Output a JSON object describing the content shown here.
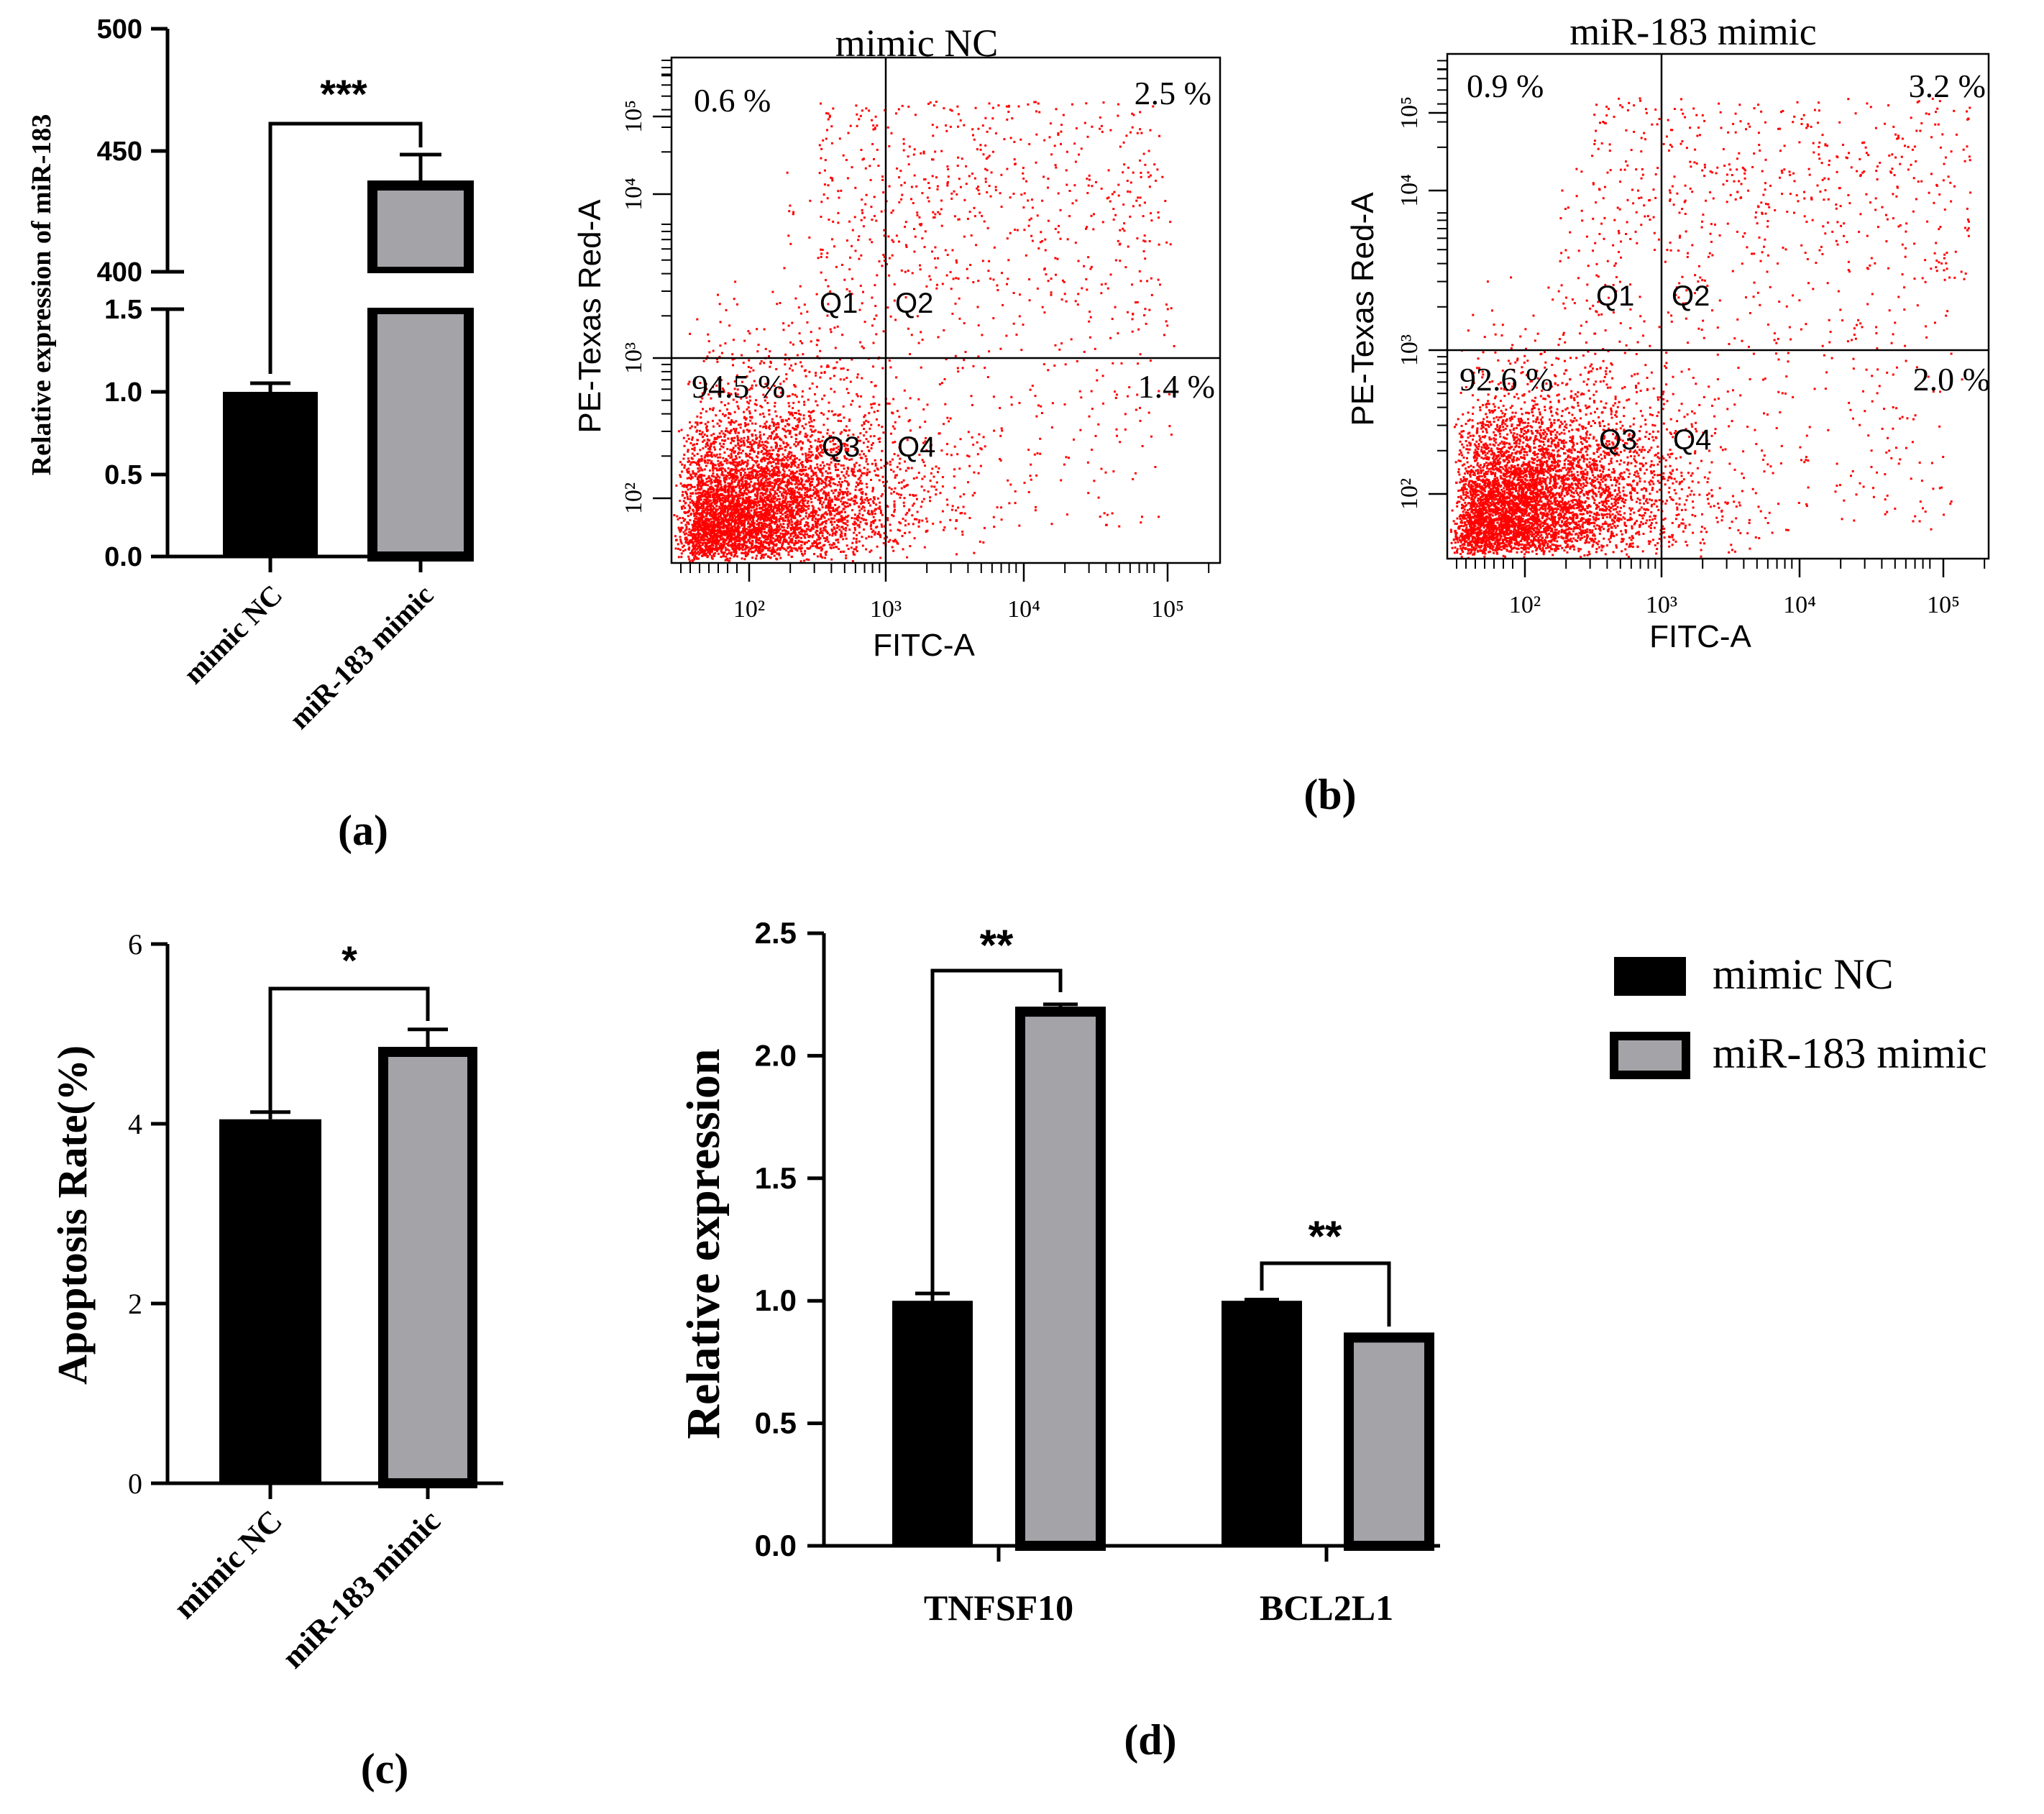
{
  "chart_data": [
    {
      "panel": "(a)",
      "type": "bar",
      "ylabel": "Relative expression of miR-183",
      "categories": [
        "mimic NC",
        "miR-183 mimic"
      ],
      "values": [
        1.0,
        437
      ],
      "errors": [
        0.05,
        12
      ],
      "axis_break": {
        "lower_range": [
          0,
          1.5
        ],
        "upper_range": [
          400,
          500
        ]
      },
      "lower_ticks": [
        "0.0",
        "0.5",
        "1.0",
        "1.5"
      ],
      "upper_ticks": [
        "400",
        "450",
        "500"
      ],
      "significance": "***",
      "bar_colors": [
        "#000000",
        "#a3a3a8"
      ]
    },
    {
      "panel": "(b)",
      "type": "scatter",
      "plots": [
        {
          "title": "mimic NC",
          "quadrants": {
            "Q1": "0.6 %",
            "Q2": "2.5 %",
            "Q3": "94.5 %",
            "Q4": "1.4 %"
          }
        },
        {
          "title": "miR-183 mimic",
          "quadrants": {
            "Q1": "0.9 %",
            "Q2": "3.2 %",
            "Q3": "92.6 %",
            "Q4": "2.0 %"
          }
        }
      ],
      "quadrant_names": [
        "Q1",
        "Q2",
        "Q3",
        "Q4"
      ],
      "xlabel": "FITC-A",
      "ylabel": "PE-Texas Red-A",
      "x_ticks": [
        "10²",
        "10³",
        "10⁴",
        "10⁵"
      ],
      "y_ticks": [
        "10²",
        "10³",
        "10⁴",
        "10⁵"
      ],
      "dot_color": "#ff0000"
    },
    {
      "panel": "(c)",
      "type": "bar",
      "ylabel": "Apoptosis Rate(%)",
      "categories": [
        "mimic NC",
        "miR-183 mimic"
      ],
      "values": [
        4.05,
        4.8
      ],
      "errors": [
        0.08,
        0.25
      ],
      "ylim": [
        0,
        6
      ],
      "ticks": [
        "0",
        "2",
        "4",
        "6"
      ],
      "significance": "*",
      "bar_colors": [
        "#000000",
        "#a3a3a8"
      ]
    },
    {
      "panel": "(d)",
      "type": "bar",
      "ylabel": "Relative expression",
      "categories": [
        "TNFSF10",
        "BCL2L1"
      ],
      "series": [
        {
          "name": "mimic NC",
          "values": [
            1.0,
            1.0
          ],
          "errors": [
            0.03,
            0.005
          ],
          "color": "#000000"
        },
        {
          "name": "miR-183 mimic",
          "values": [
            2.18,
            0.85
          ],
          "errors": [
            0.03,
            0.01
          ],
          "color": "#a3a3a8"
        }
      ],
      "ylim": [
        0,
        2.5
      ],
      "ticks": [
        "0.0",
        "0.5",
        "1.0",
        "1.5",
        "2.0",
        "2.5"
      ],
      "significance": [
        "**",
        "**"
      ]
    }
  ]
}
